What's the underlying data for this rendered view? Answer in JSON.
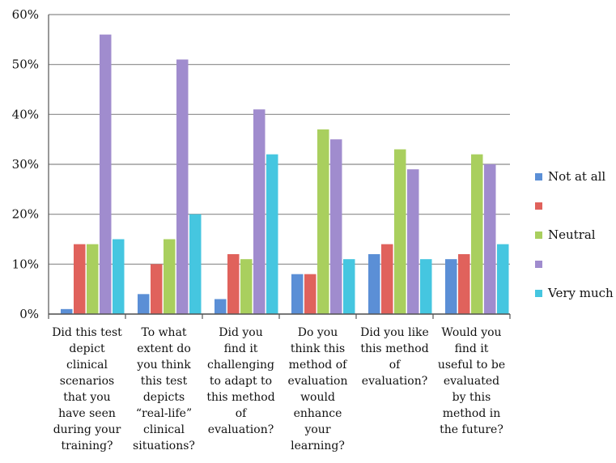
{
  "chart_data": {
    "type": "bar",
    "categories": [
      [
        "Did this test",
        "depict",
        "clinical",
        "scenarios",
        "that you",
        "have seen",
        "during your",
        "training?"
      ],
      [
        "To what",
        "extent do",
        "you think",
        "this test",
        "depicts",
        "“real-life”",
        "clinical",
        "situations?"
      ],
      [
        "Did you",
        "find it",
        "challenging",
        "to adapt to",
        "this method",
        "of",
        "evaluation?"
      ],
      [
        "Do you",
        "think this",
        "method of",
        "evaluation",
        "would",
        "enhance",
        "your",
        "learning?"
      ],
      [
        "Did you like",
        "this method",
        "of",
        "evaluation?"
      ],
      [
        "Would you",
        "find it",
        "useful to be",
        "evaluated",
        "by this",
        "method in",
        "the future?"
      ]
    ],
    "series": [
      {
        "name": "Not at all",
        "color": "#5b8fd6",
        "values": [
          1,
          4,
          3,
          8,
          12,
          11
        ]
      },
      {
        "name": "",
        "color": "#e0625c",
        "values": [
          14,
          10,
          12,
          8,
          14,
          12
        ]
      },
      {
        "name": "Neutral",
        "color": "#a9cf5e",
        "values": [
          14,
          15,
          11,
          37,
          33,
          32
        ]
      },
      {
        "name": "",
        "color": "#a08cce",
        "values": [
          56,
          51,
          41,
          35,
          29,
          30
        ]
      },
      {
        "name": "Very much",
        "color": "#45c6e0",
        "values": [
          15,
          20,
          32,
          11,
          11,
          14
        ]
      }
    ],
    "y_ticks": [
      "0%",
      "10%",
      "20%",
      "30%",
      "40%",
      "50%",
      "60%"
    ],
    "ylim": [
      0,
      60
    ],
    "grid": true,
    "legend_position": "right"
  }
}
